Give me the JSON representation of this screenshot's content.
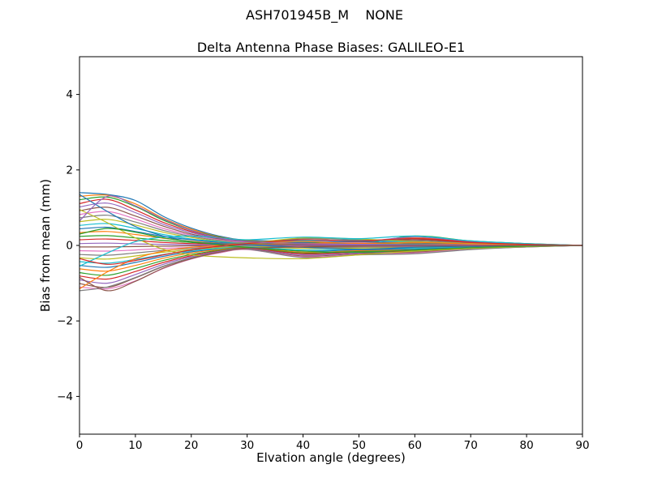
{
  "figure": {
    "background": "#ffffff",
    "axis_color": "#000000"
  },
  "chart_data": {
    "type": "line",
    "suptitle": "ASH701945B_M    NONE",
    "title": "Delta Antenna Phase Biases: GALILEO-E1",
    "xlabel": "Elvation angle (degrees)",
    "ylabel": "Bias from mean (mm)",
    "xlim": [
      0,
      90
    ],
    "ylim": [
      -5,
      5
    ],
    "xticks": [
      0,
      10,
      20,
      30,
      40,
      50,
      60,
      70,
      80,
      90
    ],
    "yticks": [
      -4,
      -2,
      0,
      2,
      4
    ],
    "grid": false,
    "legend": "none",
    "x": [
      0,
      5,
      10,
      15,
      20,
      25,
      30,
      40,
      50,
      60,
      70,
      80,
      90
    ],
    "series": [
      {
        "name": "line-01",
        "color": "#1f77b4",
        "values": [
          1.4,
          1.35,
          1.19,
          0.77,
          0.46,
          0.25,
          0.14,
          0.1,
          0.05,
          0.15,
          0.08,
          0.03,
          0.0
        ]
      },
      {
        "name": "line-02",
        "color": "#ff7f0e",
        "values": [
          1.3,
          1.33,
          1.1,
          0.72,
          0.43,
          0.23,
          0.13,
          0.06,
          0.08,
          0.2,
          0.1,
          0.04,
          0.0
        ]
      },
      {
        "name": "line-03",
        "color": "#2ca02c",
        "values": [
          1.21,
          1.28,
          1.03,
          0.67,
          0.4,
          0.22,
          0.12,
          0.08,
          0.04,
          0.25,
          0.12,
          0.05,
          0.0
        ]
      },
      {
        "name": "line-04",
        "color": "#d62728",
        "values": [
          1.11,
          1.22,
          0.94,
          0.61,
          0.37,
          0.2,
          0.11,
          0.05,
          0.02,
          0.18,
          0.09,
          0.03,
          0.0
        ]
      },
      {
        "name": "line-05",
        "color": "#9467bd",
        "values": [
          1.02,
          1.12,
          0.87,
          0.56,
          0.34,
          0.18,
          0.1,
          0.12,
          0.1,
          0.22,
          0.11,
          0.04,
          0.0
        ]
      },
      {
        "name": "line-06",
        "color": "#8c564b",
        "values": [
          0.92,
          1.01,
          0.78,
          0.51,
          0.3,
          0.17,
          0.09,
          0.15,
          0.12,
          0.15,
          0.07,
          0.03,
          0.0
        ]
      },
      {
        "name": "line-07",
        "color": "#e377c2",
        "values": [
          0.82,
          0.9,
          0.7,
          0.45,
          0.27,
          0.15,
          0.08,
          0.1,
          0.08,
          0.1,
          0.05,
          0.02,
          0.0
        ]
      },
      {
        "name": "line-08",
        "color": "#7f7f7f",
        "values": [
          0.73,
          0.8,
          0.62,
          0.4,
          0.24,
          0.13,
          0.07,
          0.18,
          0.15,
          0.12,
          0.06,
          0.02,
          0.0
        ]
      },
      {
        "name": "line-09",
        "color": "#bcbd22",
        "values": [
          0.63,
          0.69,
          0.54,
          0.35,
          0.21,
          0.11,
          0.06,
          0.2,
          0.17,
          0.1,
          0.05,
          0.02,
          0.0
        ]
      },
      {
        "name": "line-10",
        "color": "#17becf",
        "values": [
          0.53,
          0.58,
          0.45,
          0.29,
          0.17,
          0.1,
          0.05,
          0.12,
          0.14,
          0.08,
          0.04,
          0.01,
          0.0
        ]
      },
      {
        "name": "line-11",
        "color": "#1f77b4",
        "values": [
          0.44,
          0.48,
          0.37,
          0.24,
          0.15,
          0.08,
          0.04,
          0.08,
          0.1,
          0.06,
          0.03,
          0.01,
          0.0
        ]
      },
      {
        "name": "line-12",
        "color": "#ff7f0e",
        "values": [
          0.34,
          0.37,
          0.29,
          0.19,
          0.11,
          0.06,
          0.03,
          0.05,
          0.06,
          0.04,
          0.02,
          0.01,
          0.0
        ]
      },
      {
        "name": "line-13",
        "color": "#2ca02c",
        "values": [
          0.24,
          0.26,
          0.2,
          0.13,
          0.08,
          0.04,
          0.02,
          0.03,
          0.04,
          0.03,
          0.01,
          0.01,
          0.0
        ]
      },
      {
        "name": "line-14",
        "color": "#d62728",
        "values": [
          0.15,
          0.17,
          0.13,
          0.08,
          0.05,
          0.03,
          0.01,
          0.02,
          0.02,
          0.02,
          0.01,
          0.0,
          0.0
        ]
      },
      {
        "name": "line-15",
        "color": "#9467bd",
        "values": [
          0.05,
          0.06,
          0.04,
          0.03,
          0.02,
          0.01,
          0.01,
          0.01,
          0.01,
          0.01,
          0.0,
          0.0,
          0.0
        ]
      },
      {
        "name": "line-16",
        "color": "#8c564b",
        "values": [
          -0.04,
          -0.04,
          -0.03,
          -0.02,
          -0.01,
          -0.01,
          0.0,
          -0.01,
          -0.01,
          -0.01,
          0.0,
          0.0,
          0.0
        ]
      },
      {
        "name": "line-17",
        "color": "#e377c2",
        "values": [
          -0.14,
          -0.15,
          -0.12,
          -0.08,
          -0.05,
          -0.03,
          -0.01,
          -0.03,
          -0.03,
          -0.02,
          -0.01,
          0.0,
          0.0
        ]
      },
      {
        "name": "line-18",
        "color": "#7f7f7f",
        "values": [
          -0.24,
          -0.26,
          -0.2,
          -0.13,
          -0.08,
          -0.04,
          -0.02,
          -0.05,
          -0.05,
          -0.04,
          -0.02,
          -0.01,
          0.0
        ]
      },
      {
        "name": "line-19",
        "color": "#bcbd22",
        "values": [
          -0.33,
          -0.36,
          -0.28,
          -0.18,
          -0.11,
          -0.06,
          -0.03,
          -0.08,
          -0.07,
          -0.06,
          -0.03,
          -0.01,
          0.0
        ]
      },
      {
        "name": "line-20",
        "color": "#17becf",
        "values": [
          -0.43,
          -0.47,
          -0.37,
          -0.24,
          -0.14,
          -0.08,
          -0.04,
          -0.12,
          -0.1,
          -0.08,
          -0.04,
          -0.01,
          0.0
        ]
      },
      {
        "name": "line-21",
        "color": "#1f77b4",
        "values": [
          -0.53,
          -0.58,
          -0.45,
          -0.29,
          -0.17,
          -0.1,
          -0.05,
          -0.15,
          -0.12,
          -0.1,
          -0.05,
          -0.02,
          0.0
        ]
      },
      {
        "name": "line-22",
        "color": "#ff7f0e",
        "values": [
          -0.62,
          -0.68,
          -0.53,
          -0.34,
          -0.2,
          -0.11,
          -0.06,
          -0.18,
          -0.14,
          -0.12,
          -0.06,
          -0.02,
          0.0
        ]
      },
      {
        "name": "line-23",
        "color": "#2ca02c",
        "values": [
          -0.72,
          -0.79,
          -0.61,
          -0.4,
          -0.24,
          -0.13,
          -0.07,
          -0.2,
          -0.16,
          -0.14,
          -0.07,
          -0.03,
          0.0
        ]
      },
      {
        "name": "line-24",
        "color": "#d62728",
        "values": [
          -0.81,
          -0.89,
          -0.69,
          -0.45,
          -0.27,
          -0.15,
          -0.08,
          -0.22,
          -0.18,
          -0.15,
          -0.08,
          -0.03,
          0.0
        ]
      },
      {
        "name": "line-25",
        "color": "#9467bd",
        "values": [
          -0.91,
          -1.0,
          -0.77,
          -0.5,
          -0.3,
          -0.16,
          -0.09,
          -0.25,
          -0.2,
          -0.17,
          -0.08,
          -0.03,
          0.0
        ]
      },
      {
        "name": "line-26",
        "color": "#8c564b",
        "values": [
          -1.01,
          -1.11,
          -0.86,
          -0.56,
          -0.33,
          -0.18,
          -0.1,
          -0.28,
          -0.22,
          -0.18,
          -0.09,
          -0.04,
          0.0
        ]
      },
      {
        "name": "line-27",
        "color": "#e377c2",
        "values": [
          -1.1,
          -1.15,
          -0.94,
          -0.61,
          -0.36,
          -0.2,
          -0.11,
          -0.3,
          -0.24,
          -0.2,
          -0.1,
          -0.04,
          0.0
        ]
      },
      {
        "name": "line-28",
        "color": "#7f7f7f",
        "values": [
          -1.2,
          -1.1,
          -0.85,
          -0.55,
          -0.33,
          -0.18,
          -0.1,
          -0.32,
          -0.25,
          -0.22,
          -0.11,
          -0.04,
          0.0
        ]
      },
      {
        "name": "line-29",
        "color": "#bcbd22",
        "values": [
          0.95,
          0.6,
          0.2,
          -0.1,
          -0.25,
          -0.3,
          -0.33,
          -0.35,
          -0.25,
          -0.15,
          -0.08,
          -0.03,
          0.0
        ]
      },
      {
        "name": "line-30",
        "color": "#17becf",
        "values": [
          -0.55,
          -0.2,
          0.1,
          0.22,
          0.25,
          0.2,
          0.15,
          0.22,
          0.18,
          0.25,
          0.12,
          0.05,
          0.0
        ]
      },
      {
        "name": "line-31",
        "color": "#1f77b4",
        "values": [
          1.35,
          0.9,
          0.5,
          0.25,
          0.1,
          0.05,
          0.02,
          -0.05,
          -0.1,
          -0.05,
          -0.02,
          -0.01,
          0.0
        ]
      },
      {
        "name": "line-32",
        "color": "#ff7f0e",
        "values": [
          -1.15,
          -0.7,
          -0.35,
          -0.15,
          -0.05,
          0.0,
          0.05,
          0.1,
          0.05,
          0.08,
          0.04,
          0.02,
          0.0
        ]
      },
      {
        "name": "line-33",
        "color": "#2ca02c",
        "values": [
          0.3,
          0.45,
          0.35,
          0.2,
          0.1,
          0.02,
          -0.05,
          -0.15,
          -0.18,
          -0.12,
          -0.06,
          -0.02,
          0.0
        ]
      },
      {
        "name": "line-34",
        "color": "#d62728",
        "values": [
          -0.35,
          -0.5,
          -0.4,
          -0.25,
          -0.12,
          -0.02,
          0.05,
          0.15,
          0.12,
          0.18,
          0.08,
          0.03,
          0.0
        ]
      },
      {
        "name": "line-35",
        "color": "#9467bd",
        "values": [
          0.65,
          1.3,
          1.05,
          0.7,
          0.4,
          0.2,
          0.1,
          0.05,
          0.03,
          0.02,
          0.01,
          0.0,
          0.0
        ]
      },
      {
        "name": "line-36",
        "color": "#8c564b",
        "values": [
          -0.85,
          -1.2,
          -0.95,
          -0.6,
          -0.35,
          -0.18,
          -0.08,
          -0.04,
          -0.02,
          -0.01,
          -0.01,
          0.0,
          0.0
        ]
      }
    ]
  }
}
